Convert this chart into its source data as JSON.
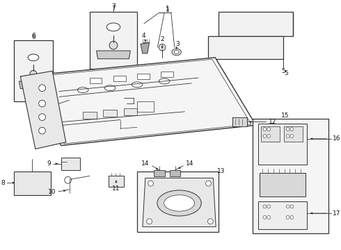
{
  "bg_color": "#ffffff",
  "lc": "#555555",
  "lc_dark": "#333333",
  "figure_size": [
    4.9,
    3.6
  ],
  "dpi": 100
}
